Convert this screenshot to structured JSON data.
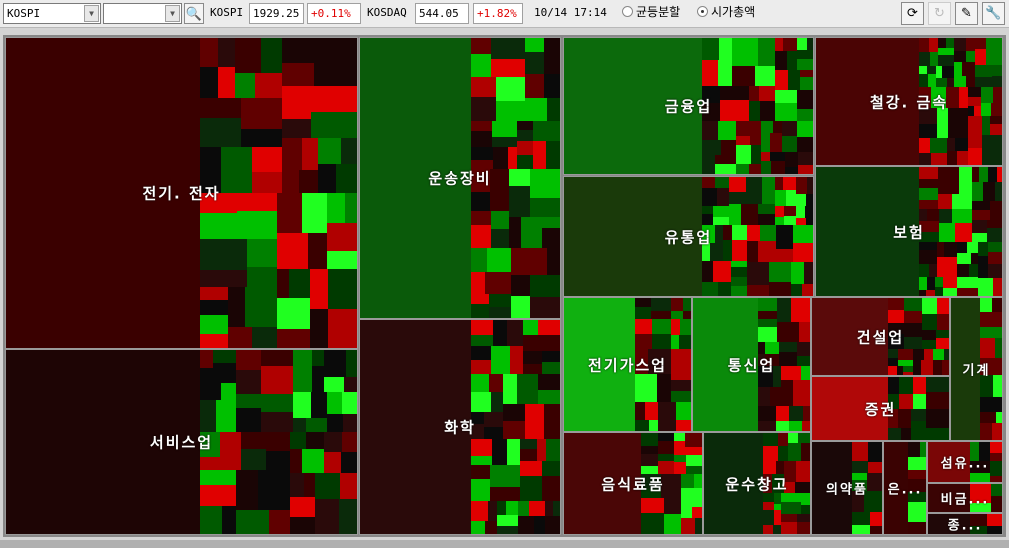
{
  "toolbar": {
    "market_select": "KOSPI",
    "sub_select": "",
    "kospi_label": "KOSPI",
    "kospi_value": "1929.25",
    "kospi_change": "+0.11%",
    "kosdaq_label": "KOSDAQ",
    "kosdaq_value": "544.05",
    "kosdaq_change": "+1.82%",
    "datetime": "10/14 17:14",
    "radio_equal": "균등분할",
    "radio_marketcap": "시가총액",
    "selected_mode": "시가총액",
    "icons": [
      "search-icon",
      "refresh-icon",
      "redo-icon",
      "edit-icon",
      "wrench-icon"
    ]
  },
  "colors": {
    "up": "#e00000",
    "down": "#00c000",
    "neutral": "#111111"
  },
  "sectors": [
    {
      "name": "전기. 전자",
      "color": "#3a0000"
    },
    {
      "name": "서비스업",
      "color": "#1e0505"
    },
    {
      "name": "운송장비",
      "color": "#0a5a0a"
    },
    {
      "name": "화학",
      "color": "#2a0a0a"
    },
    {
      "name": "금융업",
      "color": "#0c6a0c"
    },
    {
      "name": "유통업",
      "color": "#1a3a0a"
    },
    {
      "name": "전기가스업",
      "color": "#10b010"
    },
    {
      "name": "통신업",
      "color": "#0a8a0a"
    },
    {
      "name": "음식료품",
      "color": "#4a0606"
    },
    {
      "name": "운수창고",
      "color": "#0a2a0a"
    },
    {
      "name": "철강. 금속",
      "color": "#4a0404"
    },
    {
      "name": "보험",
      "color": "#0a3a0a"
    },
    {
      "name": "건설업",
      "color": "#5a0a0a"
    },
    {
      "name": "기계",
      "color": "#1a3a0a"
    },
    {
      "name": "증권",
      "color": "#b00808"
    },
    {
      "name": "의약품",
      "color": "#1a0808"
    },
    {
      "name": "은...",
      "color": "#3a0202"
    },
    {
      "name": "섬유...",
      "color": "#7a0606"
    },
    {
      "name": "비금...",
      "color": "#3a0404"
    },
    {
      "name": "종...",
      "color": "#200808"
    }
  ]
}
